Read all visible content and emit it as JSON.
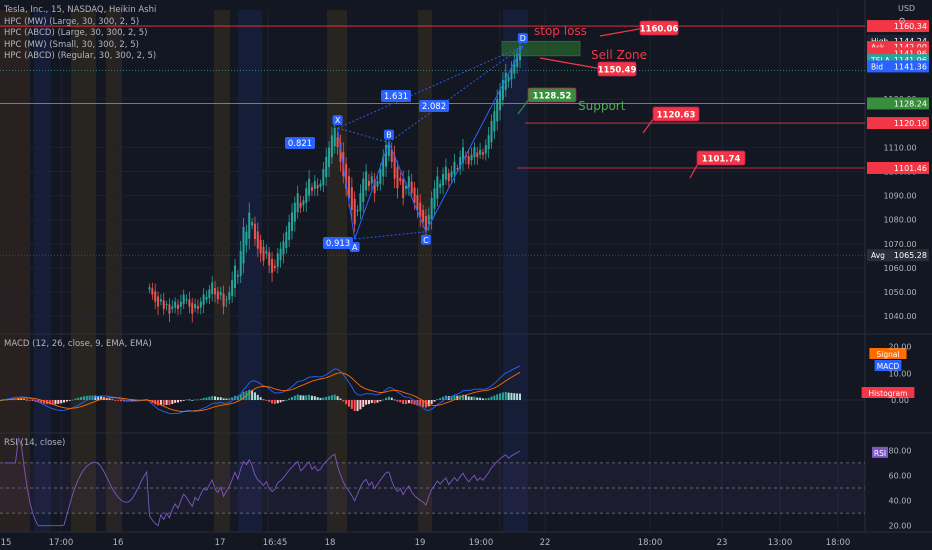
{
  "header": {
    "symbol_line": "Tesla, Inc., 15, NASDAQ, Heikin Ashi",
    "indicators": [
      "HPC (MW) (Large, 30, 300, 2, 5)",
      "HPC (ABCD) (Large, 30, 300, 2, 5)",
      "HPC (MW) (Small, 30, 300, 2, 5)",
      "HPC (ABCD) (Regular, 30, 300, 2, 5)"
    ],
    "currency": "USD"
  },
  "colors": {
    "bg": "#131722",
    "up": "#26a69a",
    "down": "#ef5350",
    "pattern": "#2962ff",
    "red_line": "#f23645",
    "green_label": "#4caf50",
    "macd_line": "#2962ff",
    "signal_line": "#ff6d00",
    "rsi_line": "#7e57c2"
  },
  "chart_data": [
    {
      "type": "candlestick",
      "name": "price",
      "ylim": [
        1033,
        1167
      ],
      "y_ticks": [
        1040.0,
        1050.0,
        1060.0,
        1070.0,
        1080.0,
        1090.0,
        1100.0,
        1110.0,
        1130.0
      ],
      "x_ticks": [
        "15",
        "17:00",
        "16",
        "17",
        "16:45",
        "18",
        "19",
        "19:00",
        "22",
        "18:00",
        "23",
        "13:00",
        "18:00"
      ],
      "key_points": [
        {
          "label": "X",
          "bar": 66,
          "price": 1118
        },
        {
          "label": "A",
          "bar": 72,
          "price": 1072
        },
        {
          "label": "B",
          "bar": 84,
          "price": 1112
        },
        {
          "label": "C",
          "bar": 97,
          "price": 1075
        },
        {
          "label": "D",
          "bar": 131,
          "price": 1152
        }
      ],
      "ratios": [
        {
          "text": "0.821",
          "between": "XB"
        },
        {
          "text": "0.913",
          "between": "AC"
        },
        {
          "text": "1.631",
          "between": "XD"
        },
        {
          "text": "2.082",
          "between": "BD"
        }
      ],
      "levels": [
        {
          "label": "stop loss",
          "price": 1160.34,
          "axis": "1160.34",
          "callout": "1160.06"
        },
        {
          "label": "Sell Zone",
          "price_low": 1148,
          "price_high": 1154,
          "callout": "1150.49"
        },
        {
          "label": "Support",
          "price": 1128.24,
          "axis": "1128.24",
          "callout": "1128.52"
        },
        {
          "label": "",
          "price": 1120.1,
          "axis": "1120.10",
          "callout": "1120.63"
        },
        {
          "label": "",
          "price": 1101.46,
          "axis": "1101.46",
          "callout": "1101.74"
        },
        {
          "label": "Avg",
          "price": 1065.28,
          "axis": "1065.28"
        }
      ],
      "quotes": [
        {
          "label": "High",
          "value": "1144.24"
        },
        {
          "label": "Ask",
          "value": "1142.00"
        },
        {
          "label": "",
          "value": "1141.96"
        },
        {
          "label": "TSLA",
          "value": "1141.96"
        },
        {
          "label": "Bid",
          "value": "1141.36"
        }
      ],
      "close": [
        1052,
        1049,
        1046,
        1044,
        1047,
        1043,
        1045,
        1041,
        1044,
        1046,
        1043,
        1046,
        1049,
        1047,
        1044,
        1041,
        1045,
        1043,
        1046,
        1049,
        1048,
        1051,
        1054,
        1049,
        1047,
        1050,
        1044,
        1047,
        1050,
        1055,
        1061,
        1057,
        1067,
        1077,
        1075,
        1083,
        1079,
        1072,
        1068,
        1066,
        1063,
        1067,
        1061,
        1058,
        1060,
        1066,
        1068,
        1071,
        1075,
        1079,
        1083,
        1087,
        1091,
        1085,
        1088,
        1093,
        1097,
        1092,
        1096,
        1093,
        1095,
        1101,
        1106,
        1110,
        1115,
        1118,
        1110,
        1104,
        1098,
        1093,
        1089,
        1084,
        1078,
        1084,
        1091,
        1097,
        1100,
        1094,
        1098,
        1091,
        1096,
        1101,
        1106,
        1111,
        1112,
        1104,
        1097,
        1093,
        1096,
        1089,
        1094,
        1098,
        1091,
        1087,
        1084,
        1081,
        1079,
        1075,
        1082,
        1089,
        1093,
        1098,
        1095,
        1099,
        1102,
        1096,
        1100,
        1104,
        1101,
        1106,
        1110,
        1106,
        1103,
        1107,
        1110,
        1106,
        1109,
        1107,
        1111,
        1115,
        1121,
        1125,
        1130,
        1134,
        1138,
        1141,
        1139,
        1143,
        1146,
        1149,
        1152
      ],
      "x_markers": [
        {
          "bar": 70,
          "label": "16:45"
        }
      ]
    },
    {
      "type": "line",
      "name": "MACD (12, 26, close, 9, EMA, EMA)",
      "ylim": [
        -12,
        24
      ],
      "y_ticks": [
        "20.00",
        "10.00",
        "0.00"
      ],
      "tags": [
        {
          "label": "Signal",
          "color": "#ff6d00"
        },
        {
          "label": "MACD",
          "color": "#2962ff"
        },
        {
          "label": "Histogram",
          "color": "#f23645"
        }
      ]
    },
    {
      "type": "line",
      "name": "RSI (14, close)",
      "ylim": [
        15,
        93
      ],
      "y_ticks": [
        "80.00",
        "60.00",
        "40.00",
        "20.00"
      ],
      "bands": [
        70,
        50,
        30
      ],
      "tag": "RSI"
    }
  ],
  "annotations": {
    "stop_loss": "stop loss",
    "sell_zone": "Sell Zone",
    "support": "Support"
  }
}
